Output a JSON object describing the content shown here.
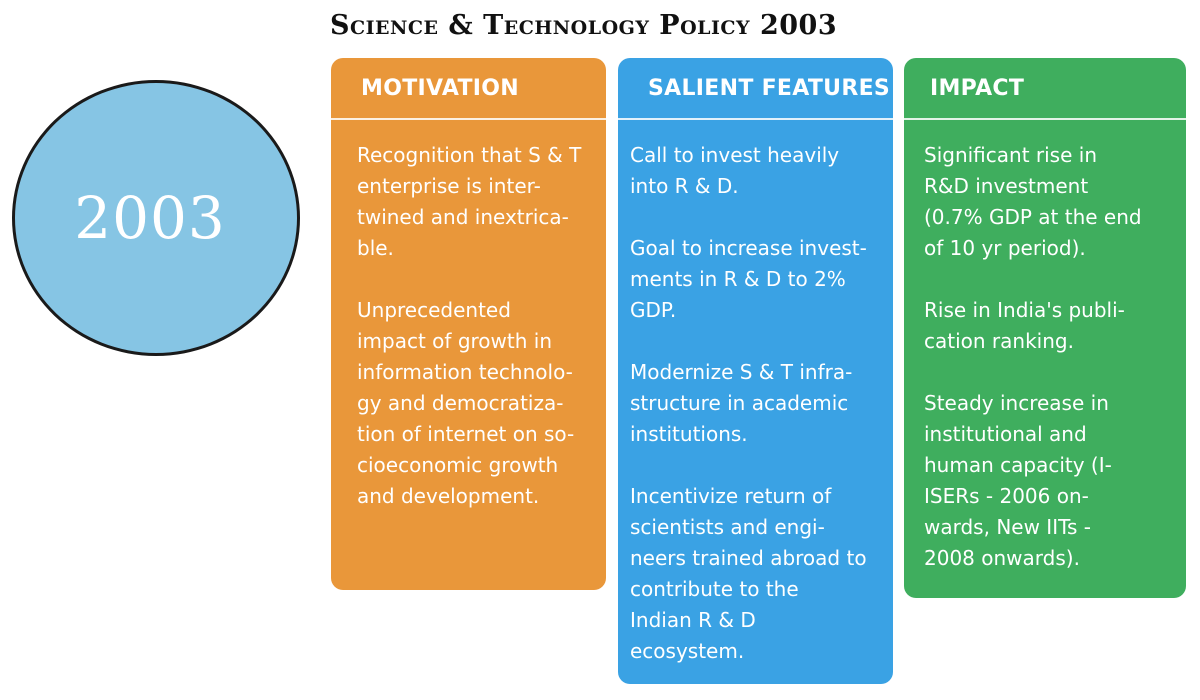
{
  "title": "Science & Technology Policy 2003",
  "year": "2003",
  "colors": {
    "motivation": "#e9973a",
    "features": "#3aa2e4",
    "impact": "#3fae5e",
    "circle": "#86c5e4"
  },
  "columns": {
    "motivation": {
      "heading": "MOTIVATION",
      "items": [
        "Recognition that S & T\nenterprise is inter-\ntwined and inextrica-\nble.",
        "Unprecedented\nimpact of growth in\ninformation technolo-\ngy and democratiza-\ntion of internet on so-\ncioeconomic growth\nand development."
      ]
    },
    "features": {
      "heading": "SALIENT FEATURES",
      "items": [
        "Call to invest heavily\ninto R & D.",
        "Goal to increase invest-\nments in R & D to 2%\nGDP.",
        "Modernize S & T infra-\nstructure in academic\ninstitutions.",
        "Incentivize return of\nscientists and engi-\nneers trained abroad to\ncontribute to the\nIndian R & D\necosystem."
      ]
    },
    "impact": {
      "heading": "IMPACT",
      "items": [
        "Significant rise in\nR&D investment\n(0.7% GDP at the end\nof 10 yr period).",
        "Rise in India's publi-\ncation ranking.",
        "Steady increase in\ninstitutional and\nhuman capacity (I-\nISERs - 2006 on-\nwards, New IITs -\n2008 onwards)."
      ]
    }
  }
}
